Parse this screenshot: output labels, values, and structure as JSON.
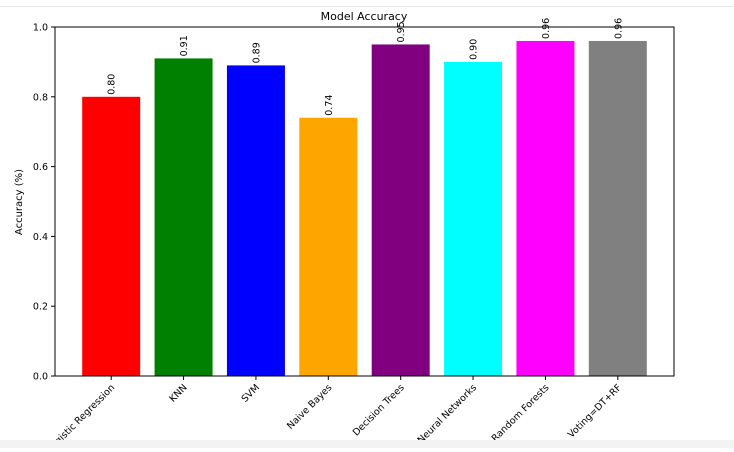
{
  "chart_data": {
    "type": "bar",
    "title": "Model Accuracy",
    "xlabel": "",
    "ylabel": "Accuracy (%)",
    "ylim": [
      0.0,
      1.0
    ],
    "yticks": [
      "0.0",
      "0.2",
      "0.4",
      "0.6",
      "0.8",
      "1.0"
    ],
    "grid": false,
    "categories": [
      "Logistic Regression",
      "KNN",
      "SVM",
      "Naive Bayes",
      "Decision Trees",
      "Neural Networks",
      "Random Forests",
      "Voting=DT+RF"
    ],
    "values": [
      0.8,
      0.91,
      0.89,
      0.74,
      0.95,
      0.9,
      0.96,
      0.96
    ],
    "value_labels": [
      "0.80",
      "0.91",
      "0.89",
      "0.74",
      "0.95",
      "0.90",
      "0.96",
      "0.96"
    ],
    "colors": [
      "#ff0000",
      "#008000",
      "#0000ff",
      "#ffa500",
      "#800080",
      "#00ffff",
      "#ff00ff",
      "#808080"
    ]
  }
}
